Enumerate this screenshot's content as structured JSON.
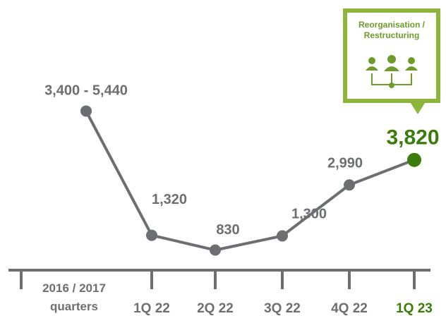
{
  "chart_data": {
    "type": "line",
    "categories": [
      "2016 / 2017 quarters",
      "1Q 22",
      "2Q 22",
      "3Q 22",
      "4Q 22",
      "1Q 23"
    ],
    "series": [
      {
        "color": "#6d6e71",
        "values": [
          5440,
          1320,
          830,
          1300,
          2990,
          3820
        ],
        "value_labels": [
          "3,400 - 5,440",
          "1,320",
          "830",
          "1,300",
          "2,990",
          "3,820"
        ]
      }
    ],
    "highlight_color": "#3a7d0a",
    "ylim": [
      0,
      8000
    ],
    "annotation": "Reorganisation / Restructuring"
  }
}
